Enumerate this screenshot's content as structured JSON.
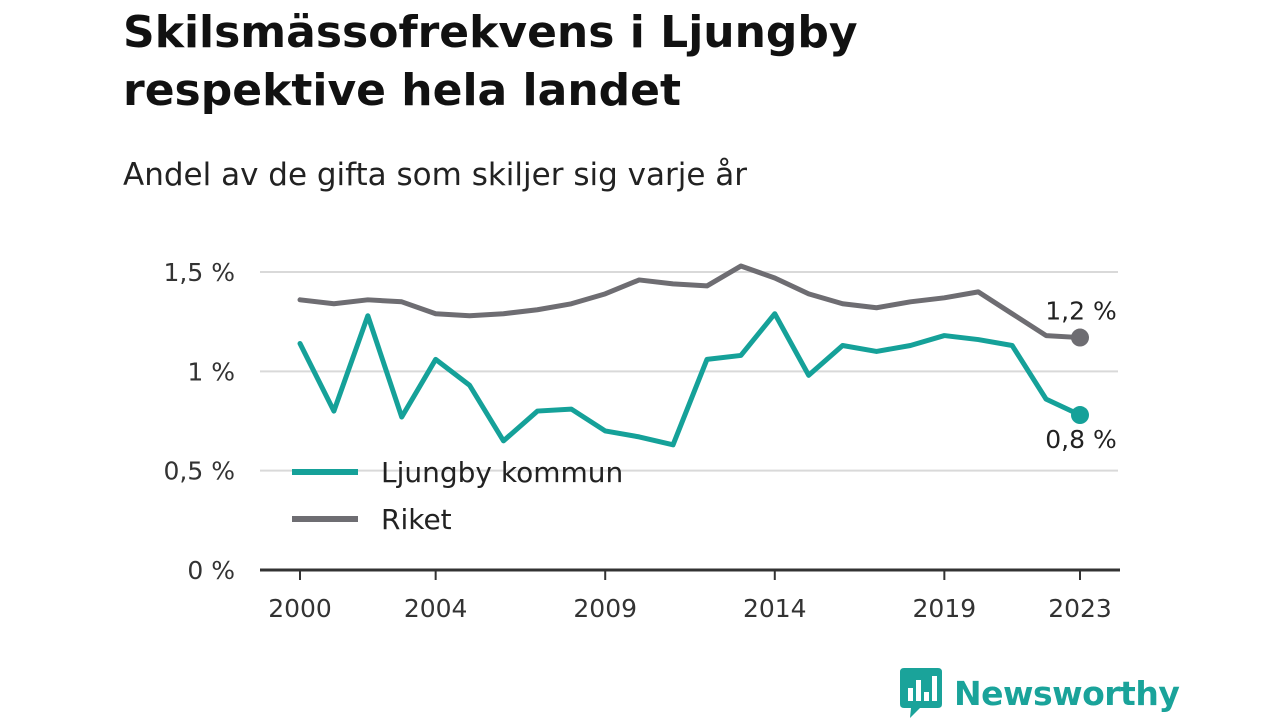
{
  "colors": {
    "ljungby": "#15a199",
    "riket": "#6e6d72",
    "grid": "#d9d9d9",
    "axis": "#333333",
    "brand": "#1aa39a"
  },
  "brand": {
    "name": "Newsworthy",
    "icon": "bar-chart-bubble-icon"
  },
  "chart_data": {
    "type": "line",
    "title": "Skilsmässofrekvens i Ljungby respektive hela landet",
    "subtitle": "Andel av de gifta som skiljer sig varje år",
    "x": [
      2000,
      2001,
      2002,
      2003,
      2004,
      2005,
      2006,
      2007,
      2008,
      2009,
      2010,
      2011,
      2012,
      2013,
      2014,
      2015,
      2016,
      2017,
      2018,
      2019,
      2020,
      2021,
      2022,
      2023
    ],
    "x_tick_values": [
      2000,
      2004,
      2009,
      2014,
      2019,
      2023
    ],
    "x_tick_labels": [
      "2000",
      "2004",
      "2009",
      "2014",
      "2019",
      "2023"
    ],
    "y_tick_values": [
      0,
      0.5,
      1,
      1.5
    ],
    "y_tick_labels": [
      "0 %",
      "0,5 %",
      "1 %",
      "1,5 %"
    ],
    "ylim": [
      0,
      1.5
    ],
    "grid": true,
    "legend_position": "bottom-left",
    "series": [
      {
        "name": "Ljungby kommun",
        "color": "#15a199",
        "values": [
          1.14,
          0.8,
          1.28,
          0.77,
          1.06,
          0.93,
          0.65,
          0.8,
          0.81,
          0.7,
          0.67,
          0.63,
          1.06,
          1.08,
          1.29,
          0.98,
          1.13,
          1.1,
          1.13,
          1.18,
          1.16,
          1.13,
          0.86,
          0.78
        ],
        "end_label": "0,8 %"
      },
      {
        "name": "Riket",
        "color": "#6e6d72",
        "values": [
          1.36,
          1.34,
          1.36,
          1.35,
          1.29,
          1.28,
          1.29,
          1.31,
          1.34,
          1.39,
          1.46,
          1.44,
          1.43,
          1.53,
          1.47,
          1.39,
          1.34,
          1.32,
          1.35,
          1.37,
          1.4,
          1.29,
          1.18,
          1.17
        ],
        "end_label": "1,2 %"
      }
    ]
  }
}
